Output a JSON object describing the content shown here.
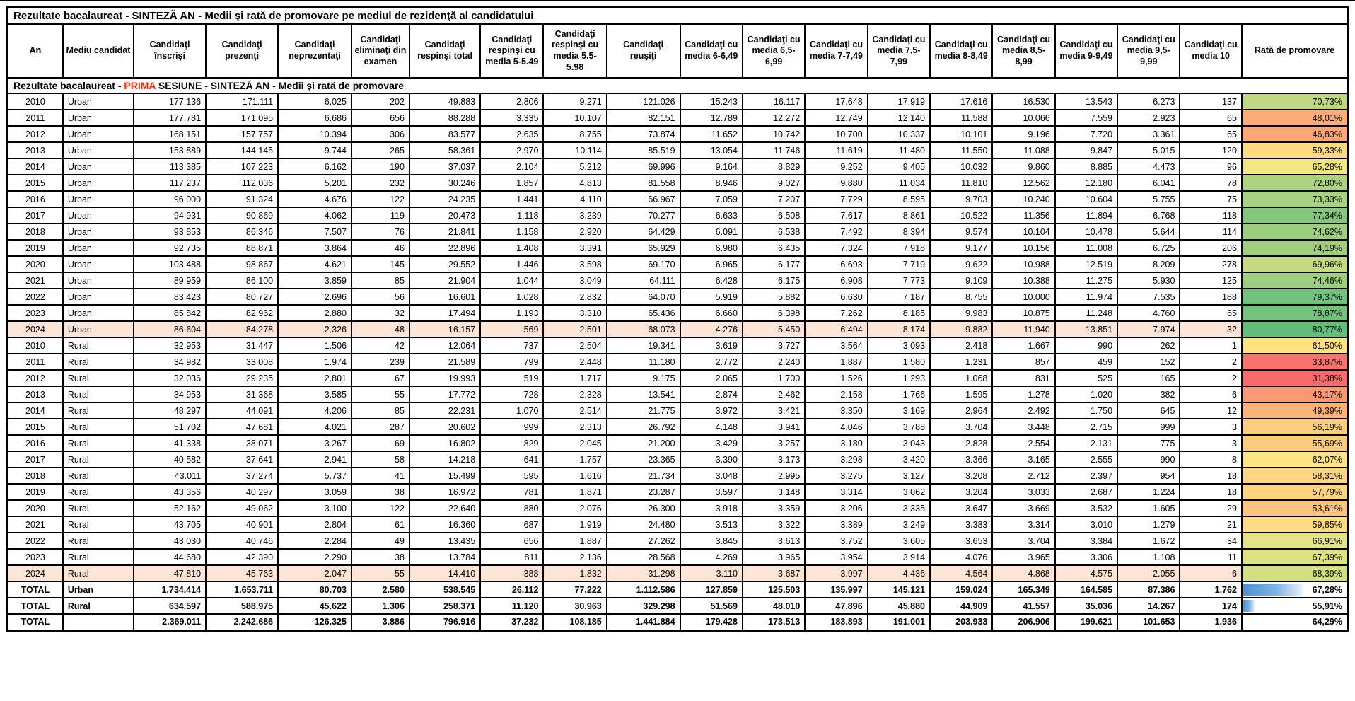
{
  "title": "Rezultate bacalaureat - SINTEZĂ AN - Medii şi rată de promovare pe mediul de rezidenţă al candidatului",
  "subtitle": {
    "prefix": "Rezultate bacalaureat - ",
    "highlight": "PRIMA",
    "suffix": " SESIUNE - SINTEZĂ AN - Medii şi rată de promovare"
  },
  "colors": {
    "accent_red": "#FF2600",
    "row_highlight": "#FCE4D6",
    "databar_blue": "#4E91D5",
    "scale_min_red": "#F8696B",
    "scale_mid_yellow": "#FFEB84",
    "scale_max_green": "#63BE7B"
  },
  "chart_data": {
    "type": "table",
    "title": "Rezultate bacalaureat - SINTEZĂ AN - Medii şi rată de promovare pe mediul de rezidenţă al candidatului",
    "columns": [
      "An",
      "Mediu candidat",
      "Candidaţi înscrişi",
      "Candidaţi prezenţi",
      "Candidaţi neprezentaţi",
      "Candidaţi eliminaţi din examen",
      "Candidaţi respinşi total",
      "Candidaţi respinşi cu media 5-5.49",
      "Candidaţi respinşi cu media 5.5-5.98",
      "Candidaţi reuşiţi",
      "Candidaţi cu media 6-6,49",
      "Candidaţi cu media 6,5-6,99",
      "Candidaţi cu media 7-7,49",
      "Candidaţi cu media 7,5-7,99",
      "Candidaţi cu media 8-8,49",
      "Candidaţi cu media 8,5-8,99",
      "Candidaţi cu media 9-9,49",
      "Candidaţi cu media 9,5-9,99",
      "Candidaţi cu media 10",
      "Rată de promovare"
    ],
    "rows": [
      {
        "an": "2010",
        "mediu": "Urban",
        "values": [
          "177.136",
          "171.111",
          "6.025",
          "202",
          "49.883",
          "2.806",
          "9.271",
          "121.026",
          "15.243",
          "16.117",
          "17.648",
          "17.919",
          "17.616",
          "16.530",
          "13.543",
          "6.273",
          "137"
        ],
        "promo": "70,73%",
        "promo_color": "#BFD880"
      },
      {
        "an": "2011",
        "mediu": "Urban",
        "values": [
          "177.781",
          "171.095",
          "6.686",
          "656",
          "88.288",
          "3.335",
          "10.107",
          "82.151",
          "12.789",
          "12.272",
          "12.749",
          "12.140",
          "11.588",
          "10.066",
          "7.559",
          "2.923",
          "65"
        ],
        "promo": "48,01%",
        "promo_color": "#FCAC78"
      },
      {
        "an": "2012",
        "mediu": "Urban",
        "values": [
          "168.151",
          "157.757",
          "10.394",
          "306",
          "83.577",
          "2.635",
          "8.755",
          "73.874",
          "11.652",
          "10.742",
          "10.700",
          "10.337",
          "10.101",
          "9.196",
          "7.720",
          "3.361",
          "65"
        ],
        "promo": "46,83%",
        "promo_color": "#FBA777"
      },
      {
        "an": "2013",
        "mediu": "Urban",
        "values": [
          "153.889",
          "144.145",
          "9.744",
          "265",
          "58.361",
          "2.970",
          "10.114",
          "85.519",
          "13.054",
          "11.746",
          "11.619",
          "11.480",
          "11.550",
          "11.088",
          "9.847",
          "5.015",
          "120"
        ],
        "promo": "59,33%",
        "promo_color": "#FED981"
      },
      {
        "an": "2014",
        "mediu": "Urban",
        "values": [
          "113.385",
          "107.223",
          "6.162",
          "190",
          "37.037",
          "2.104",
          "5.212",
          "69.996",
          "9.164",
          "8.829",
          "9.252",
          "9.405",
          "10.032",
          "9.860",
          "8.885",
          "4.473",
          "96"
        ],
        "promo": "65,28%",
        "promo_color": "#F0E783"
      },
      {
        "an": "2015",
        "mediu": "Urban",
        "values": [
          "117.237",
          "112.036",
          "5.201",
          "232",
          "30.246",
          "1.857",
          "4.813",
          "81.558",
          "8.946",
          "9.027",
          "9.880",
          "11.034",
          "11.810",
          "12.562",
          "12.180",
          "6.041",
          "78"
        ],
        "promo": "72,80%",
        "promo_color": "#ACD37F"
      },
      {
        "an": "2016",
        "mediu": "Urban",
        "values": [
          "96.000",
          "91.324",
          "4.676",
          "122",
          "24.235",
          "1.441",
          "4.110",
          "66.967",
          "7.059",
          "7.207",
          "7.729",
          "8.595",
          "9.703",
          "10.240",
          "10.604",
          "5.755",
          "75"
        ],
        "promo": "73,33%",
        "promo_color": "#A7D27F"
      },
      {
        "an": "2017",
        "mediu": "Urban",
        "values": [
          "94.931",
          "90.869",
          "4.062",
          "119",
          "20.473",
          "1.118",
          "3.239",
          "70.277",
          "6.633",
          "6.508",
          "7.617",
          "8.861",
          "10.522",
          "11.356",
          "11.894",
          "6.768",
          "118"
        ],
        "promo": "77,34%",
        "promo_color": "#82C77D"
      },
      {
        "an": "2018",
        "mediu": "Urban",
        "values": [
          "93.853",
          "86.346",
          "7.507",
          "76",
          "21.841",
          "1.158",
          "2.920",
          "64.429",
          "6.091",
          "6.538",
          "7.492",
          "8.394",
          "9.574",
          "10.104",
          "10.478",
          "5.644",
          "114"
        ],
        "promo": "74,62%",
        "promo_color": "#9BCE7E"
      },
      {
        "an": "2019",
        "mediu": "Urban",
        "values": [
          "92.735",
          "88.871",
          "3.864",
          "46",
          "22.896",
          "1.408",
          "3.391",
          "65.929",
          "6.980",
          "6.435",
          "7.324",
          "7.918",
          "9.177",
          "10.156",
          "11.008",
          "6.725",
          "206"
        ],
        "promo": "74,19%",
        "promo_color": "#9FCF7E"
      },
      {
        "an": "2020",
        "mediu": "Urban",
        "values": [
          "103.488",
          "98.867",
          "4.621",
          "145",
          "29.552",
          "1.446",
          "3.598",
          "69.170",
          "6.965",
          "6.177",
          "6.693",
          "7.719",
          "9.622",
          "10.988",
          "12.519",
          "8.209",
          "278"
        ],
        "promo": "69,96%",
        "promo_color": "#C6DA81"
      },
      {
        "an": "2021",
        "mediu": "Urban",
        "values": [
          "89.959",
          "86.100",
          "3.859",
          "85",
          "21.904",
          "1.044",
          "3.049",
          "64.111",
          "6.428",
          "6.175",
          "6.908",
          "7.773",
          "9.109",
          "10.388",
          "11.275",
          "5.930",
          "125"
        ],
        "promo": "74,46%",
        "promo_color": "#9DCF7E"
      },
      {
        "an": "2022",
        "mediu": "Urban",
        "values": [
          "83.423",
          "80.727",
          "2.696",
          "56",
          "16.601",
          "1.028",
          "2.832",
          "64.070",
          "5.919",
          "5.882",
          "6.630",
          "7.187",
          "8.755",
          "10.000",
          "11.974",
          "7.535",
          "188"
        ],
        "promo": "79,37%",
        "promo_color": "#70C27C"
      },
      {
        "an": "2023",
        "mediu": "Urban",
        "values": [
          "85.842",
          "82.962",
          "2.880",
          "32",
          "17.494",
          "1.193",
          "3.310",
          "65.436",
          "6.660",
          "6.398",
          "7.262",
          "8.185",
          "9.983",
          "10.875",
          "11.248",
          "4.760",
          "65"
        ],
        "promo": "78,87%",
        "promo_color": "#74C37C"
      },
      {
        "an": "2024",
        "mediu": "Urban",
        "highlight": true,
        "values": [
          "86.604",
          "84.278",
          "2.326",
          "48",
          "16.157",
          "569",
          "2.501",
          "68.073",
          "4.276",
          "5.450",
          "6.494",
          "8.174",
          "9.882",
          "11.940",
          "13.851",
          "7.974",
          "32"
        ],
        "promo": "80,77%",
        "promo_color": "#63BE7B"
      },
      {
        "an": "2010",
        "mediu": "Rural",
        "values": [
          "32.953",
          "31.447",
          "1.506",
          "42",
          "12.064",
          "737",
          "2.504",
          "19.341",
          "3.619",
          "3.727",
          "3.564",
          "3.093",
          "2.418",
          "1.667",
          "990",
          "262",
          "1"
        ],
        "promo": "61,50%",
        "promo_color": "#FEE282"
      },
      {
        "an": "2011",
        "mediu": "Rural",
        "values": [
          "34.982",
          "33.008",
          "1.974",
          "239",
          "21.589",
          "799",
          "2.448",
          "11.180",
          "2.772",
          "2.240",
          "1.887",
          "1.580",
          "1.231",
          "857",
          "459",
          "152",
          "2"
        ],
        "promo": "33,87%",
        "promo_color": "#F9736D"
      },
      {
        "an": "2012",
        "mediu": "Rural",
        "values": [
          "32.036",
          "29.235",
          "2.801",
          "67",
          "19.993",
          "519",
          "1.717",
          "9.175",
          "2.065",
          "1.700",
          "1.526",
          "1.293",
          "1.068",
          "831",
          "525",
          "165",
          "2"
        ],
        "promo": "31,38%",
        "promo_color": "#F8696B"
      },
      {
        "an": "2013",
        "mediu": "Rural",
        "values": [
          "34.953",
          "31.368",
          "3.585",
          "55",
          "17.772",
          "728",
          "2.328",
          "13.541",
          "2.874",
          "2.462",
          "2.158",
          "1.766",
          "1.595",
          "1.278",
          "1.020",
          "382",
          "6"
        ],
        "promo": "43,17%",
        "promo_color": "#FB9874"
      },
      {
        "an": "2014",
        "mediu": "Rural",
        "values": [
          "48.297",
          "44.091",
          "4.206",
          "85",
          "22.231",
          "1.070",
          "2.514",
          "21.775",
          "3.972",
          "3.421",
          "3.350",
          "3.169",
          "2.964",
          "2.492",
          "1.750",
          "645",
          "12"
        ],
        "promo": "49,39%",
        "promo_color": "#FCB279"
      },
      {
        "an": "2015",
        "mediu": "Rural",
        "values": [
          "51.702",
          "47.681",
          "4.021",
          "287",
          "20.602",
          "999",
          "2.313",
          "26.792",
          "4.148",
          "3.941",
          "4.046",
          "3.788",
          "3.704",
          "3.448",
          "2.715",
          "999",
          "3"
        ],
        "promo": "56,19%",
        "promo_color": "#FDCD7E"
      },
      {
        "an": "2016",
        "mediu": "Rural",
        "values": [
          "41.338",
          "38.071",
          "3.267",
          "69",
          "16.802",
          "829",
          "2.045",
          "21.200",
          "3.429",
          "3.257",
          "3.180",
          "3.043",
          "2.828",
          "2.554",
          "2.131",
          "775",
          "3"
        ],
        "promo": "55,69%",
        "promo_color": "#FDCB7E"
      },
      {
        "an": "2017",
        "mediu": "Rural",
        "values": [
          "40.582",
          "37.641",
          "2.941",
          "58",
          "14.218",
          "641",
          "1.757",
          "23.365",
          "3.390",
          "3.173",
          "3.298",
          "3.420",
          "3.366",
          "3.165",
          "2.555",
          "990",
          "8"
        ],
        "promo": "62,07%",
        "promo_color": "#FFE483"
      },
      {
        "an": "2018",
        "mediu": "Rural",
        "values": [
          "43.011",
          "37.274",
          "5.737",
          "41",
          "15.499",
          "595",
          "1.616",
          "21.734",
          "3.048",
          "2.995",
          "3.275",
          "3.127",
          "3.208",
          "2.712",
          "2.397",
          "954",
          "18"
        ],
        "promo": "58,31%",
        "promo_color": "#FED580"
      },
      {
        "an": "2019",
        "mediu": "Rural",
        "values": [
          "43.356",
          "40.297",
          "3.059",
          "38",
          "16.972",
          "781",
          "1.871",
          "23.287",
          "3.597",
          "3.148",
          "3.314",
          "3.062",
          "3.204",
          "3.033",
          "2.687",
          "1.224",
          "18"
        ],
        "promo": "57,79%",
        "promo_color": "#FED37F"
      },
      {
        "an": "2020",
        "mediu": "Rural",
        "values": [
          "52.162",
          "49.062",
          "3.100",
          "122",
          "22.640",
          "880",
          "2.076",
          "26.300",
          "3.918",
          "3.359",
          "3.206",
          "3.335",
          "3.647",
          "3.669",
          "3.532",
          "1.605",
          "29"
        ],
        "promo": "53,61%",
        "promo_color": "#FDC37C"
      },
      {
        "an": "2021",
        "mediu": "Rural",
        "values": [
          "43.705",
          "40.901",
          "2.804",
          "61",
          "16.360",
          "687",
          "1.919",
          "24.480",
          "3.513",
          "3.322",
          "3.389",
          "3.249",
          "3.383",
          "3.314",
          "3.010",
          "1.279",
          "21"
        ],
        "promo": "59,85%",
        "promo_color": "#FEDC81"
      },
      {
        "an": "2022",
        "mediu": "Rural",
        "values": [
          "43.030",
          "40.746",
          "2.284",
          "49",
          "13.435",
          "656",
          "1.887",
          "27.262",
          "3.845",
          "3.613",
          "3.752",
          "3.605",
          "3.653",
          "3.704",
          "3.384",
          "1.672",
          "34"
        ],
        "promo": "66,91%",
        "promo_color": "#E2E382"
      },
      {
        "an": "2023",
        "mediu": "Rural",
        "values": [
          "44.680",
          "42.390",
          "2.290",
          "38",
          "13.784",
          "811",
          "2.136",
          "28.568",
          "4.269",
          "3.965",
          "3.954",
          "3.914",
          "4.076",
          "3.965",
          "3.306",
          "1.108",
          "11"
        ],
        "promo": "67,39%",
        "promo_color": "#DDE182"
      },
      {
        "an": "2024",
        "mediu": "Rural",
        "highlight": true,
        "values": [
          "47.810",
          "45.763",
          "2.047",
          "55",
          "14.410",
          "388",
          "1.832",
          "31.298",
          "3.110",
          "3.687",
          "3.997",
          "4.436",
          "4.564",
          "4.868",
          "4.575",
          "2.055",
          "6"
        ],
        "promo": "68,39%",
        "promo_color": "#D4DF82"
      },
      {
        "an": "TOTAL",
        "mediu": "Urban",
        "total": true,
        "values": [
          "1.734.414",
          "1.653.711",
          "80.703",
          "2.580",
          "538.545",
          "26.112",
          "77.222",
          "1.112.586",
          "127.859",
          "125.503",
          "135.997",
          "145.121",
          "159.024",
          "165.349",
          "164.585",
          "87.386",
          "1.762"
        ],
        "promo": "67,28%",
        "bar_pct": 57
      },
      {
        "an": "TOTAL",
        "mediu": "Rural",
        "total": true,
        "values": [
          "634.597",
          "588.975",
          "45.622",
          "1.306",
          "258.371",
          "11.120",
          "30.963",
          "329.298",
          "51.569",
          "48.010",
          "47.896",
          "45.880",
          "44.909",
          "41.557",
          "35.036",
          "14.267",
          "174"
        ],
        "promo": "55,91%",
        "bar_pct": 11
      },
      {
        "an": "TOTAL",
        "mediu": "",
        "total": true,
        "values": [
          "2.369.011",
          "2.242.686",
          "126.325",
          "3.886",
          "796.916",
          "37.232",
          "108.185",
          "1.441.884",
          "179.428",
          "173.513",
          "183.893",
          "191.001",
          "203.933",
          "206.906",
          "199.621",
          "101.653",
          "1.936"
        ],
        "promo": "64,29%",
        "bar_pct": 0
      }
    ]
  }
}
